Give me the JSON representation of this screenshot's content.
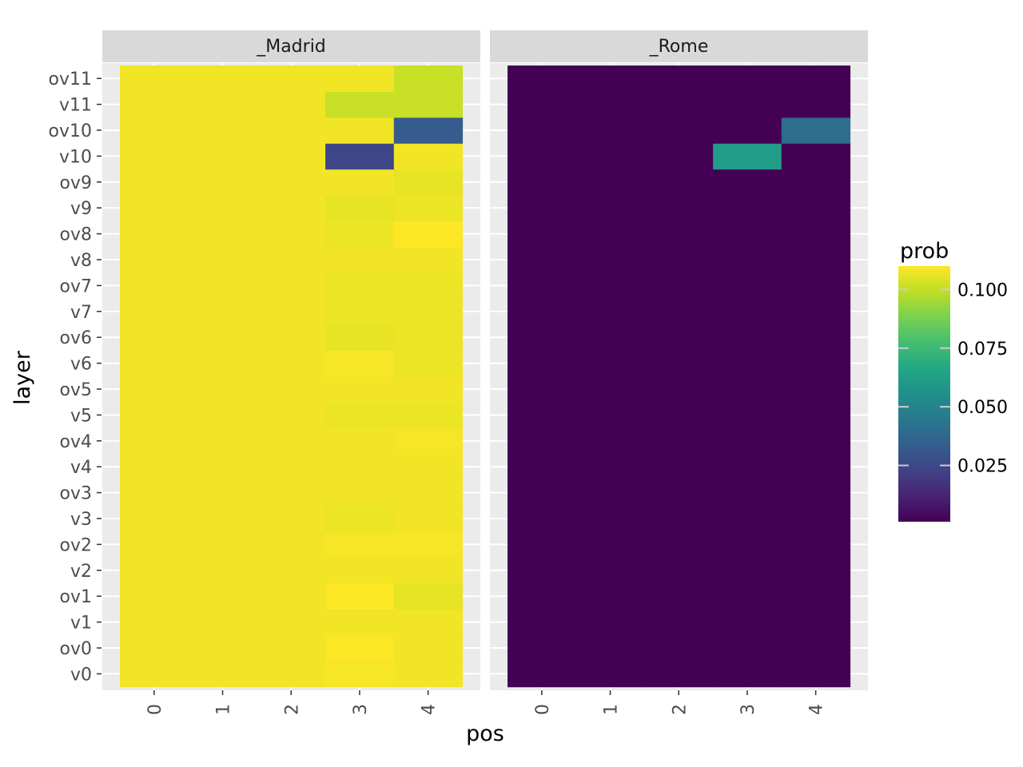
{
  "chart_data": {
    "type": "heatmap",
    "xlabel": "pos",
    "ylabel": "layer",
    "x_categories": [
      "0",
      "1",
      "2",
      "3",
      "4"
    ],
    "y_categories": [
      "v0",
      "ov0",
      "v1",
      "ov1",
      "v2",
      "ov2",
      "v3",
      "ov3",
      "v4",
      "ov4",
      "v5",
      "ov5",
      "v6",
      "ov6",
      "v7",
      "ov7",
      "v8",
      "ov8",
      "v9",
      "ov9",
      "v10",
      "ov10",
      "v11",
      "ov11"
    ],
    "facets": [
      {
        "name": "_Madrid",
        "values": [
          [
            0.108,
            0.108,
            0.108,
            0.109,
            0.108
          ],
          [
            0.108,
            0.108,
            0.108,
            0.11,
            0.108
          ],
          [
            0.108,
            0.108,
            0.108,
            0.108,
            0.108
          ],
          [
            0.108,
            0.108,
            0.108,
            0.11,
            0.106
          ],
          [
            0.108,
            0.108,
            0.108,
            0.108,
            0.108
          ],
          [
            0.108,
            0.108,
            0.108,
            0.109,
            0.109
          ],
          [
            0.108,
            0.108,
            0.108,
            0.107,
            0.108
          ],
          [
            0.108,
            0.108,
            0.108,
            0.108,
            0.108
          ],
          [
            0.108,
            0.108,
            0.108,
            0.108,
            0.108
          ],
          [
            0.108,
            0.108,
            0.108,
            0.108,
            0.109
          ],
          [
            0.108,
            0.108,
            0.108,
            0.107,
            0.107
          ],
          [
            0.108,
            0.108,
            0.108,
            0.108,
            0.108
          ],
          [
            0.108,
            0.108,
            0.108,
            0.109,
            0.107
          ],
          [
            0.108,
            0.108,
            0.108,
            0.106,
            0.107
          ],
          [
            0.108,
            0.108,
            0.108,
            0.107,
            0.107
          ],
          [
            0.108,
            0.108,
            0.108,
            0.107,
            0.107
          ],
          [
            0.108,
            0.108,
            0.108,
            0.108,
            0.108
          ],
          [
            0.108,
            0.108,
            0.108,
            0.107,
            0.11
          ],
          [
            0.108,
            0.108,
            0.108,
            0.106,
            0.107
          ],
          [
            0.108,
            0.108,
            0.108,
            0.108,
            0.106
          ],
          [
            0.108,
            0.108,
            0.108,
            0.024,
            0.108
          ],
          [
            0.108,
            0.108,
            0.108,
            0.108,
            0.033
          ],
          [
            0.108,
            0.108,
            0.108,
            0.101,
            0.101
          ],
          [
            0.108,
            0.108,
            0.108,
            0.108,
            0.101
          ]
        ]
      },
      {
        "name": "_Rome",
        "values": [
          [
            0.001,
            0.001,
            0.001,
            0.001,
            0.001
          ],
          [
            0.001,
            0.001,
            0.001,
            0.001,
            0.001
          ],
          [
            0.001,
            0.001,
            0.001,
            0.001,
            0.001
          ],
          [
            0.001,
            0.001,
            0.001,
            0.001,
            0.001
          ],
          [
            0.001,
            0.001,
            0.001,
            0.001,
            0.001
          ],
          [
            0.001,
            0.001,
            0.001,
            0.001,
            0.001
          ],
          [
            0.001,
            0.001,
            0.001,
            0.001,
            0.001
          ],
          [
            0.001,
            0.001,
            0.001,
            0.001,
            0.001
          ],
          [
            0.001,
            0.001,
            0.001,
            0.001,
            0.001
          ],
          [
            0.001,
            0.001,
            0.001,
            0.001,
            0.001
          ],
          [
            0.001,
            0.001,
            0.001,
            0.001,
            0.001
          ],
          [
            0.001,
            0.001,
            0.001,
            0.001,
            0.001
          ],
          [
            0.001,
            0.001,
            0.001,
            0.001,
            0.001
          ],
          [
            0.001,
            0.001,
            0.001,
            0.001,
            0.001
          ],
          [
            0.001,
            0.001,
            0.001,
            0.001,
            0.001
          ],
          [
            0.001,
            0.001,
            0.001,
            0.001,
            0.001
          ],
          [
            0.001,
            0.001,
            0.001,
            0.001,
            0.001
          ],
          [
            0.001,
            0.001,
            0.001,
            0.001,
            0.001
          ],
          [
            0.001,
            0.001,
            0.001,
            0.001,
            0.001
          ],
          [
            0.001,
            0.001,
            0.001,
            0.001,
            0.001
          ],
          [
            0.001,
            0.001,
            0.001,
            0.061,
            0.001
          ],
          [
            0.001,
            0.001,
            0.001,
            0.001,
            0.04
          ],
          [
            0.001,
            0.001,
            0.001,
            0.001,
            0.001
          ],
          [
            0.001,
            0.001,
            0.001,
            0.001,
            0.001
          ]
        ]
      }
    ],
    "legend": {
      "title": "prob",
      "position": "right",
      "ticks": [
        0.025,
        0.05,
        0.075,
        0.1
      ],
      "tick_labels": [
        "0.025",
        "0.050",
        "0.075",
        "0.100"
      ],
      "min": 0.001,
      "max": 0.11,
      "colormap": "viridis"
    },
    "grid": true
  }
}
